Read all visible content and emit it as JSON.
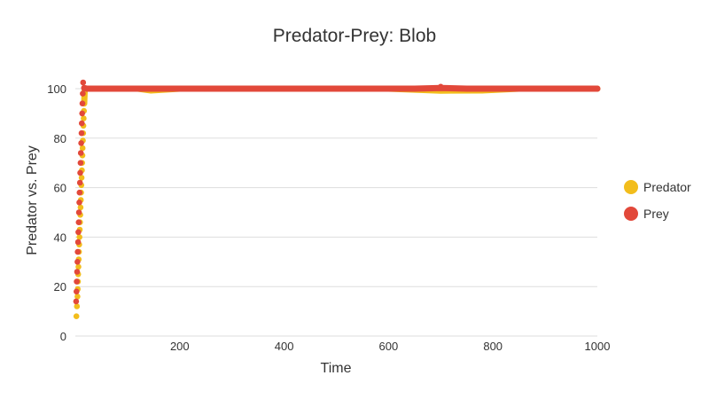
{
  "chart_data": {
    "type": "scatter",
    "title": "Predator-Prey: Blob",
    "xlabel": "Time",
    "ylabel": "Predator vs. Prey",
    "xlim": [
      0,
      1000
    ],
    "ylim": [
      0,
      100
    ],
    "x_ticks": [
      200,
      400,
      600,
      800,
      1000
    ],
    "y_ticks": [
      0,
      20,
      40,
      60,
      80,
      100
    ],
    "grid": "horizontal",
    "legend_position": "right",
    "series": [
      {
        "name": "Predator",
        "color": "#f2bd1c",
        "points": [
          [
            2,
            8
          ],
          [
            3,
            12
          ],
          [
            4,
            16
          ],
          [
            4.5,
            19
          ],
          [
            5,
            22
          ],
          [
            5.5,
            25
          ],
          [
            6,
            28
          ],
          [
            6.5,
            31
          ],
          [
            7,
            34
          ],
          [
            7.5,
            37
          ],
          [
            8,
            40
          ],
          [
            8.5,
            43
          ],
          [
            9,
            46
          ],
          [
            9.5,
            49
          ],
          [
            10,
            52
          ],
          [
            10.5,
            55
          ],
          [
            11,
            58
          ],
          [
            11.5,
            61
          ],
          [
            12,
            64
          ],
          [
            12.5,
            67
          ],
          [
            13,
            70
          ],
          [
            13.5,
            73
          ],
          [
            14,
            76
          ],
          [
            14.5,
            79
          ],
          [
            15,
            82
          ],
          [
            15.5,
            85
          ],
          [
            16,
            88
          ],
          [
            16.5,
            91
          ],
          [
            17,
            94
          ],
          [
            17.5,
            97
          ],
          [
            18,
            99.5
          ],
          [
            20,
            100
          ],
          [
            40,
            100
          ],
          [
            80,
            100
          ],
          [
            120,
            100
          ],
          [
            145,
            99.3
          ],
          [
            200,
            100
          ],
          [
            300,
            100
          ],
          [
            400,
            100
          ],
          [
            500,
            100
          ],
          [
            600,
            100
          ],
          [
            700,
            99.2
          ],
          [
            779,
            99.3
          ],
          [
            850,
            100
          ],
          [
            950,
            100
          ],
          [
            1000,
            100
          ]
        ]
      },
      {
        "name": "Prey",
        "color": "#e2483a",
        "points": [
          [
            1.5,
            14
          ],
          [
            2.2,
            18
          ],
          [
            2.8,
            22
          ],
          [
            3.4,
            26
          ],
          [
            4,
            30
          ],
          [
            4.6,
            34
          ],
          [
            5.2,
            38
          ],
          [
            5.8,
            42
          ],
          [
            6.4,
            46
          ],
          [
            7,
            50
          ],
          [
            7.6,
            54
          ],
          [
            8.2,
            58
          ],
          [
            8.8,
            62
          ],
          [
            9.4,
            66
          ],
          [
            10,
            70
          ],
          [
            10.6,
            74
          ],
          [
            11.2,
            78
          ],
          [
            11.8,
            82
          ],
          [
            12.4,
            86
          ],
          [
            13,
            90
          ],
          [
            13.6,
            94
          ],
          [
            14.2,
            98
          ],
          [
            15,
            102.5
          ],
          [
            17,
            100.3
          ],
          [
            22,
            100
          ],
          [
            30,
            100
          ],
          [
            50,
            100
          ],
          [
            100,
            100
          ],
          [
            150,
            100
          ],
          [
            200,
            100
          ],
          [
            250,
            100
          ],
          [
            300,
            100
          ],
          [
            350,
            100
          ],
          [
            400,
            100
          ],
          [
            450,
            100
          ],
          [
            500,
            100
          ],
          [
            550,
            100
          ],
          [
            600,
            100
          ],
          [
            650,
            100
          ],
          [
            700,
            100.8
          ],
          [
            750,
            100
          ],
          [
            800,
            100
          ],
          [
            850,
            100
          ],
          [
            900,
            100
          ],
          [
            950,
            100
          ],
          [
            1000,
            100
          ]
        ]
      }
    ]
  }
}
